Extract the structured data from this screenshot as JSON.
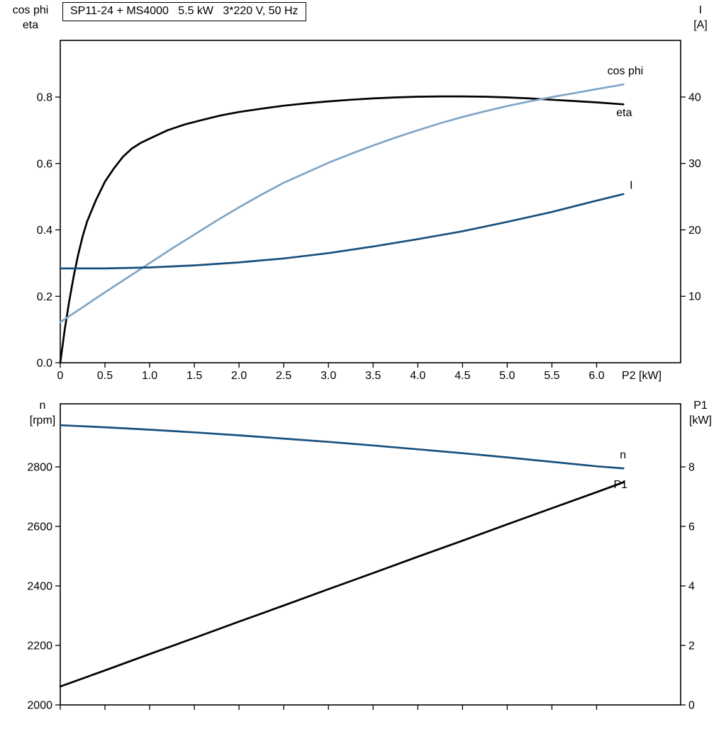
{
  "page": {
    "background": "#ffffff"
  },
  "title_box": {
    "text": "SP11-24 + MS4000   5.5 kW   3*220 V, 50 Hz"
  },
  "axis_corner_labels": {
    "top_left_line1": "cos phi",
    "top_left_line2": "eta",
    "top_right_line1": "I",
    "top_right_line2": "[A]",
    "bottom_left_line1": "n",
    "bottom_left_line2": "[rpm]",
    "bottom_right_line1": "P1",
    "bottom_right_line2": "[kW]",
    "x_axis_label": "P2 [kW]"
  },
  "colors": {
    "black": "#000000",
    "steel_blue": "#7fa5c6",
    "dark_blue": "#174f7c"
  },
  "chart_data": [
    {
      "type": "line",
      "title": "SP11-24 + MS4000   5.5 kW   3*220 V, 50 Hz",
      "xlabel": "P2 [kW]",
      "ylabel_left": "cos phi / eta",
      "ylabel_right": "I [A]",
      "grid": false,
      "legend_position": "inline-labels",
      "xlim": [
        0,
        6.94
      ],
      "ylim_left": [
        0,
        0.9707
      ],
      "ylim_right": [
        0,
        48.53
      ],
      "x_ticks": {
        "values": [
          0,
          0.5,
          1.0,
          1.5,
          2.0,
          2.5,
          3.0,
          3.5,
          4.0,
          4.5,
          5.0,
          5.5,
          6.0
        ],
        "labels": [
          "0",
          "0.5",
          "1.0",
          "1.5",
          "2.0",
          "2.5",
          "3.0",
          "3.5",
          "4.0",
          "4.5",
          "5.0",
          "5.5",
          "6.0"
        ]
      },
      "y_ticks_left": {
        "values": [
          0.0,
          0.2,
          0.4,
          0.6,
          0.8
        ],
        "labels": [
          "0.0",
          "0.2",
          "0.4",
          "0.6",
          "0.8"
        ]
      },
      "y_ticks_right": {
        "values": [
          10,
          20,
          30,
          40
        ],
        "labels": [
          "10",
          "20",
          "30",
          "40"
        ]
      },
      "series": [
        {
          "name": "eta",
          "axis": "left",
          "color": "#000000",
          "label_at": [
            6.22,
            0.742
          ],
          "x": [
            0,
            0.05,
            0.1,
            0.15,
            0.2,
            0.25,
            0.3,
            0.4,
            0.5,
            0.6,
            0.7,
            0.8,
            0.9,
            1.0,
            1.2,
            1.4,
            1.6,
            1.8,
            2.0,
            2.25,
            2.5,
            2.75,
            3.0,
            3.25,
            3.5,
            3.75,
            4.0,
            4.25,
            4.5,
            4.75,
            5.0,
            5.25,
            5.5,
            5.75,
            6.0,
            6.3
          ],
          "y": [
            0,
            0.1,
            0.185,
            0.26,
            0.325,
            0.38,
            0.425,
            0.49,
            0.545,
            0.585,
            0.62,
            0.645,
            0.662,
            0.675,
            0.7,
            0.718,
            0.732,
            0.745,
            0.755,
            0.765,
            0.774,
            0.781,
            0.787,
            0.792,
            0.796,
            0.799,
            0.801,
            0.802,
            0.802,
            0.801,
            0.799,
            0.796,
            0.792,
            0.788,
            0.784,
            0.778
          ]
        },
        {
          "name": "cos phi",
          "axis": "left",
          "color": "#7fa5c6",
          "label_at": [
            6.12,
            0.868
          ],
          "x": [
            0,
            0.25,
            0.5,
            0.75,
            1.0,
            1.25,
            1.5,
            1.75,
            2.0,
            2.25,
            2.5,
            2.75,
            3.0,
            3.25,
            3.5,
            3.75,
            4.0,
            4.25,
            4.5,
            4.75,
            5.0,
            5.25,
            5.5,
            5.75,
            6.0,
            6.3
          ],
          "y": [
            0.122,
            0.167,
            0.212,
            0.256,
            0.3,
            0.344,
            0.386,
            0.428,
            0.468,
            0.506,
            0.542,
            0.572,
            0.602,
            0.629,
            0.654,
            0.678,
            0.7,
            0.721,
            0.74,
            0.757,
            0.773,
            0.787,
            0.8,
            0.812,
            0.824,
            0.838
          ]
        },
        {
          "name": "I",
          "axis": "right",
          "color": "#174f7c",
          "label_at": [
            6.37,
            26.2
          ],
          "x": [
            0,
            0.5,
            1.0,
            1.5,
            2.0,
            2.5,
            3.0,
            3.5,
            4.0,
            4.5,
            5.0,
            5.5,
            6.0,
            6.3
          ],
          "y": [
            14.2,
            14.2,
            14.35,
            14.65,
            15.1,
            15.7,
            16.5,
            17.5,
            18.6,
            19.8,
            21.2,
            22.7,
            24.4,
            25.4
          ]
        }
      ]
    },
    {
      "type": "line",
      "title": "",
      "xlabel": "",
      "ylabel_left": "n [rpm]",
      "ylabel_right": "P1 [kW]",
      "grid": false,
      "legend_position": "inline-labels",
      "xlim": [
        0,
        6.94
      ],
      "ylim_left": [
        2000,
        3011.9
      ],
      "ylim_right": [
        0,
        10.119
      ],
      "x_ticks": {
        "values": [
          0,
          0.5,
          1.0,
          1.5,
          2.0,
          2.5,
          3.0,
          3.5,
          4.0,
          4.5,
          5.0,
          5.5,
          6.0
        ],
        "labels": []
      },
      "y_ticks_left": {
        "values": [
          2000,
          2200,
          2400,
          2600,
          2800
        ],
        "labels": [
          "2000",
          "2200",
          "2400",
          "2600",
          "2800"
        ]
      },
      "y_ticks_right": {
        "values": [
          0,
          2,
          4,
          6,
          8
        ],
        "labels": [
          "0",
          "2",
          "4",
          "6",
          "8"
        ]
      },
      "series": [
        {
          "name": "n",
          "axis": "left",
          "color": "#174f7c",
          "label_at": [
            6.26,
            2828
          ],
          "x": [
            0,
            0.5,
            1.0,
            1.5,
            2.0,
            2.5,
            3.0,
            3.5,
            4.0,
            4.5,
            5.0,
            5.5,
            6.0,
            6.3
          ],
          "y": [
            2940,
            2933,
            2925,
            2916,
            2906,
            2895,
            2884,
            2872,
            2859,
            2846,
            2832,
            2817,
            2802,
            2795
          ]
        },
        {
          "name": "P1",
          "axis": "right",
          "color": "#000000",
          "label_at": [
            6.19,
            7.28
          ],
          "x": [
            0,
            0.5,
            1.0,
            1.5,
            2.0,
            2.5,
            3.0,
            3.5,
            4.0,
            4.5,
            5.0,
            5.5,
            6.0,
            6.3
          ],
          "y": [
            0.62,
            1.16,
            1.71,
            2.25,
            2.8,
            3.34,
            3.89,
            4.43,
            4.98,
            5.52,
            6.07,
            6.61,
            7.15,
            7.48
          ]
        }
      ]
    }
  ]
}
